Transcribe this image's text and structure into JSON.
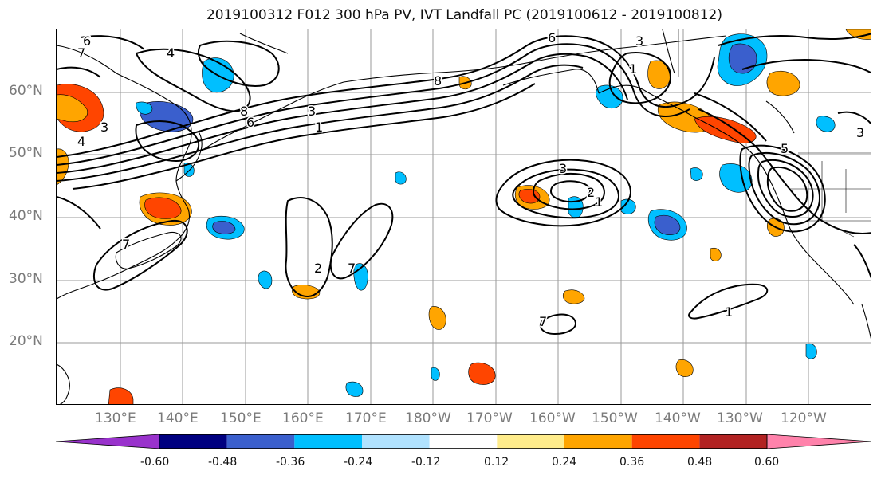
{
  "title": "2019100312 F012 300 hPa PV, IVT Landfall PC (2019100612 - 2019100812)",
  "map": {
    "latitude_labels": [
      "60°N",
      "50°N",
      "40°N",
      "30°N",
      "20°N"
    ],
    "longitude_labels": [
      "130°E",
      "140°E",
      "150°E",
      "160°E",
      "170°E",
      "180°W",
      "170°W",
      "160°W",
      "150°W",
      "140°W",
      "130°W",
      "120°W"
    ],
    "contour_labels": [
      "6",
      "4",
      "7",
      "8",
      "3",
      "6",
      "4",
      "3",
      "1",
      "7",
      "2",
      "3",
      "1",
      "8",
      "5",
      "6",
      "3",
      "7",
      "2",
      "1",
      "7",
      "3",
      "1"
    ]
  },
  "colorbar": {
    "tick_labels": [
      "-0.60",
      "-0.48",
      "-0.36",
      "-0.24",
      "-0.12",
      "0.12",
      "0.24",
      "0.36",
      "0.48",
      "0.60"
    ],
    "colors": [
      "#9932cc",
      "#000080",
      "#3a5fcd",
      "#00bfff",
      "#b0e2ff",
      "#ffffff",
      "#ffec8b",
      "#ffa500",
      "#ff4500",
      "#b22222",
      "#ff82ab"
    ]
  }
}
